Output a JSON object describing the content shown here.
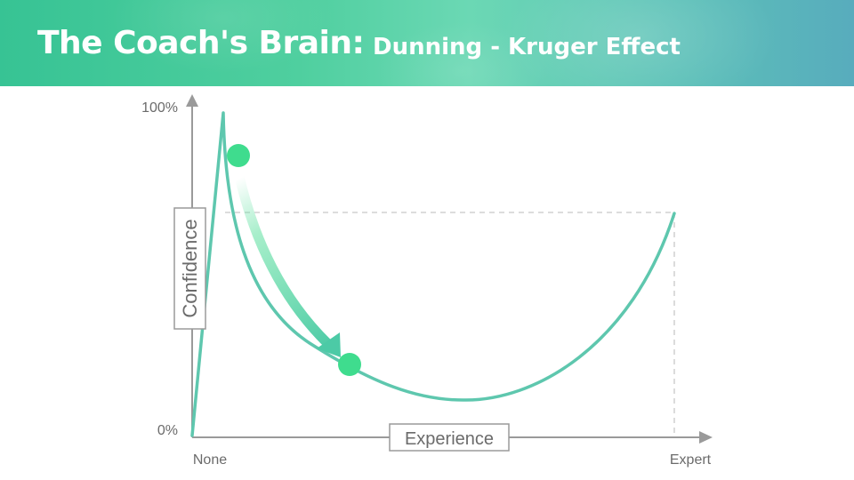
{
  "header": {
    "title": "The Coach's Brain:",
    "subtitle": "Dunning - Kruger Effect"
  },
  "diagram": {
    "y_axis": {
      "label": "Confidence",
      "top_tick": "100%",
      "bottom_tick": "0%"
    },
    "x_axis": {
      "label": "Experience",
      "left_tick": "None",
      "right_tick": "Expert"
    }
  },
  "colors": {
    "curve": "#5ec7ae",
    "marker": "#3fdc8e",
    "axis": "#9a9a9a",
    "banner_start": "#37c394",
    "banner_end": "#58acbd"
  }
}
